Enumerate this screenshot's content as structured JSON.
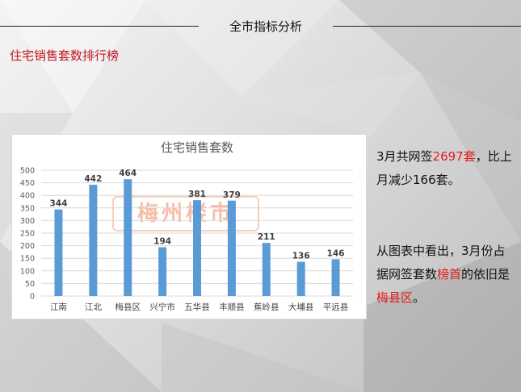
{
  "header": {
    "title": "全市指标分析"
  },
  "section": {
    "title": "住宅销售套数排行榜"
  },
  "watermark": {
    "text": "梅州楼市"
  },
  "summary": {
    "p1_a": "3月共网签",
    "p1_num": "2697套",
    "p1_b": "，比上月减少166套。",
    "p2_a": "从图表中看出，3月份占据网签套数",
    "p2_hl1": "榜首",
    "p2_b": "的依旧是",
    "p2_hl2": "梅县区",
    "p2_c": "。"
  },
  "colors": {
    "bar": "#5b9bd5",
    "accent": "#c0161e",
    "highlight": "#e21b1b"
  },
  "chart_data": {
    "type": "bar",
    "title": "住宅销售套数",
    "categories": [
      "江南",
      "江北",
      "梅县区",
      "兴宁市",
      "五华县",
      "丰顺县",
      "蕉岭县",
      "大埔县",
      "平远县"
    ],
    "values": [
      344,
      442,
      464,
      194,
      381,
      379,
      211,
      136,
      146
    ],
    "yticks": [
      "0",
      "50",
      "100",
      "150",
      "200",
      "250",
      "300",
      "350",
      "400",
      "450",
      "500"
    ],
    "ylim": [
      0,
      500
    ],
    "grid": true,
    "xlabel": "",
    "ylabel": ""
  }
}
